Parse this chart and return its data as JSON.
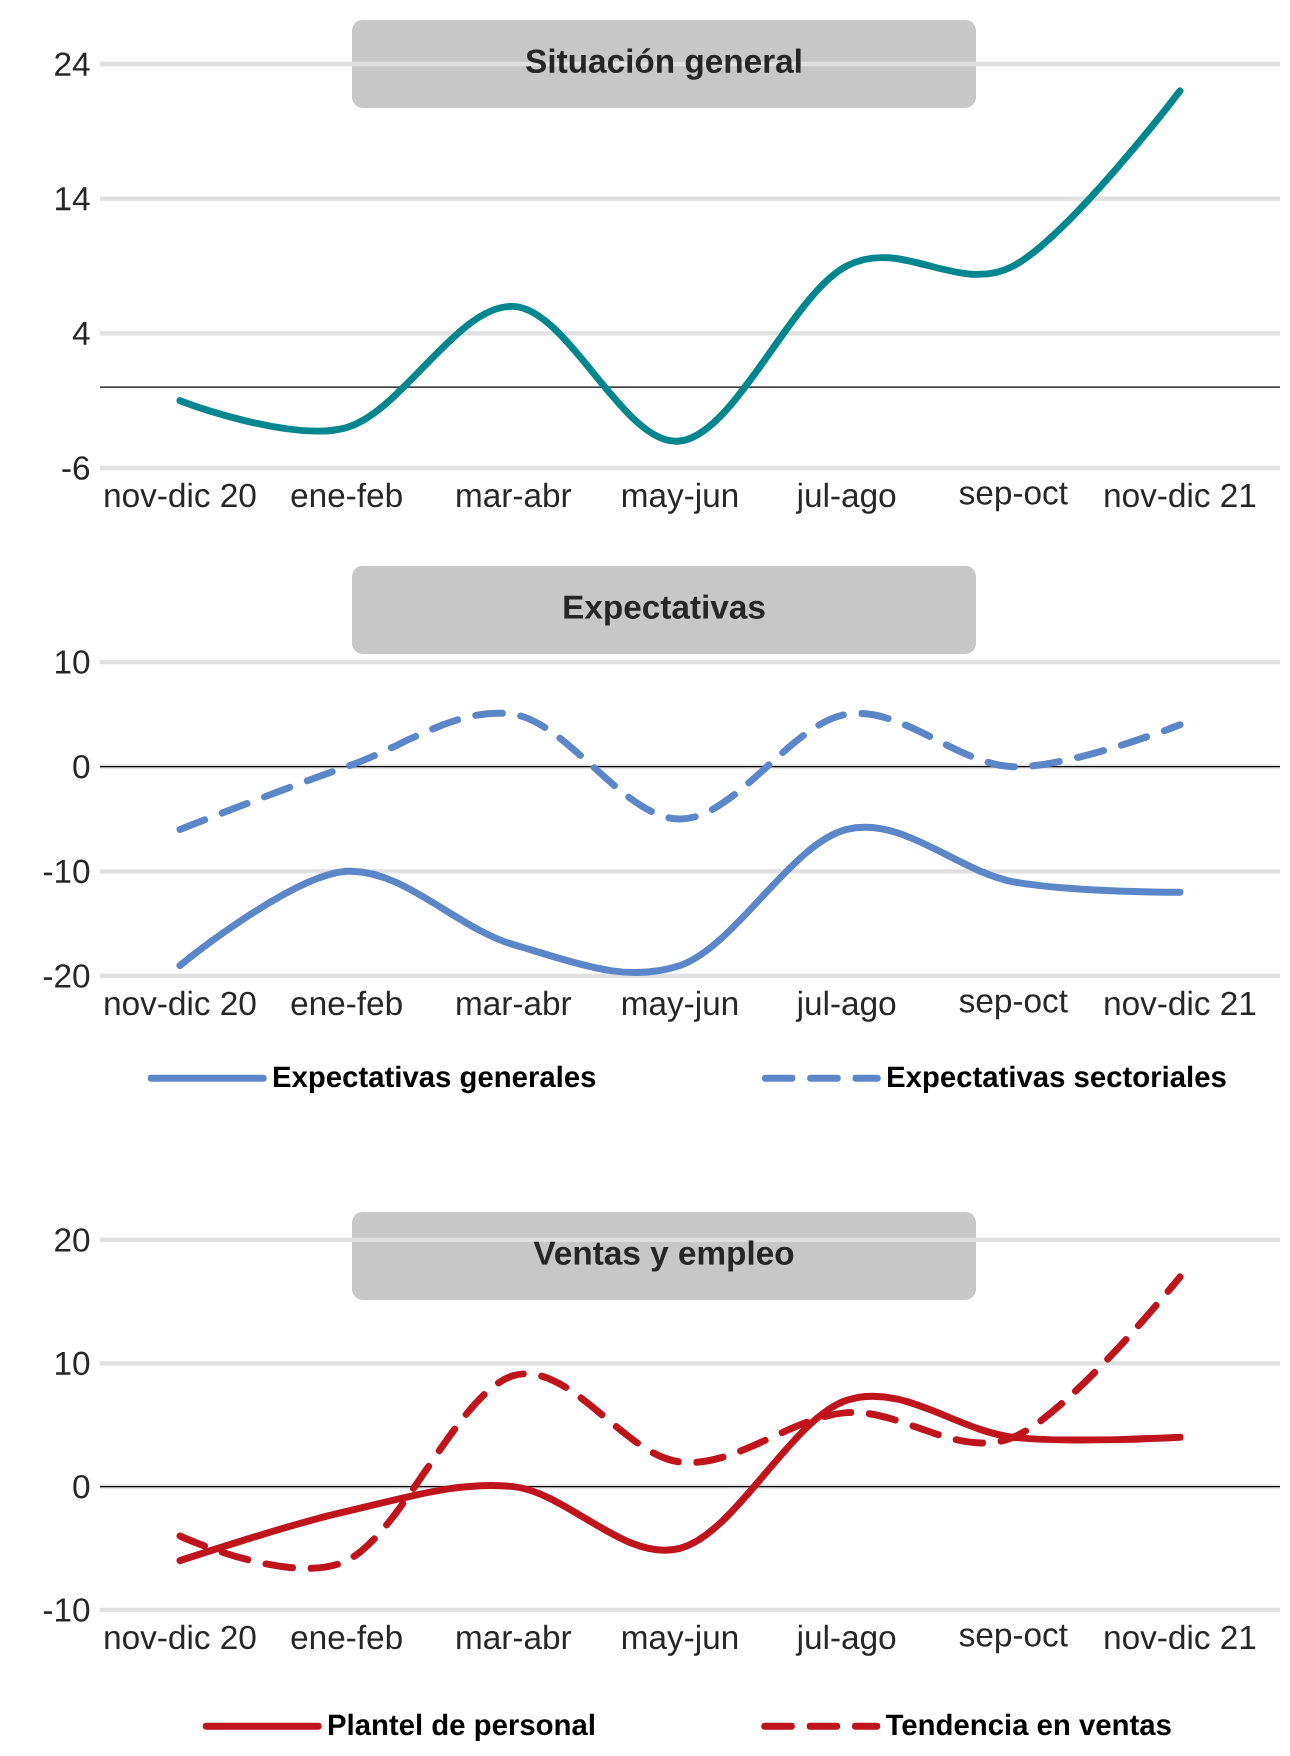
{
  "chart_data": [
    {
      "type": "line",
      "title": "Situación general",
      "categories": [
        "nov-dic 20",
        "ene-feb",
        "mar-abr",
        "may-jun",
        "jul-ago",
        "sep-oct",
        "nov-dic 21"
      ],
      "series": [
        {
          "color": "#00868f",
          "values": [
            -1,
            -3,
            6,
            -4,
            9,
            9,
            22
          ]
        }
      ],
      "ylim": [
        -6,
        24
      ],
      "yticks": [
        -6,
        4,
        14,
        24
      ],
      "grid": "y",
      "legend": false,
      "ref_lines": [
        {
          "axis": "y",
          "value": 0,
          "color": "#000000"
        }
      ]
    },
    {
      "type": "line",
      "title": "Expectativas",
      "categories": [
        "nov-dic 20",
        "ene-feb",
        "mar-abr",
        "may-jun",
        "jul-ago",
        "sep-oct",
        "nov-dic 21"
      ],
      "series": [
        {
          "name": "Expectativas generales",
          "color": "#5b87c8",
          "values": [
            -19,
            -10,
            -17,
            -19,
            -6,
            -11,
            -12
          ]
        },
        {
          "name": "Expectativas sectoriales",
          "color": "#5b87c8",
          "line_style": "dashed",
          "values": [
            -6,
            0,
            5,
            -5,
            5,
            0,
            4
          ]
        }
      ],
      "ylim": [
        -20,
        10
      ],
      "yticks": [
        -20,
        -10,
        0,
        10
      ],
      "grid": "y",
      "legend": "bottom",
      "ref_lines": [
        {
          "axis": "y",
          "value": 0,
          "color": "#000000"
        }
      ]
    },
    {
      "type": "line",
      "title": "Ventas y empleo",
      "categories": [
        "nov-dic 20",
        "ene-feb",
        "mar-abr",
        "may-jun",
        "jul-ago",
        "sep-oct",
        "nov-dic 21"
      ],
      "series": [
        {
          "name": "Plantel de personal",
          "color": "#c0141c",
          "values": [
            -6,
            -2,
            0,
            -5,
            7,
            4,
            4
          ]
        },
        {
          "name": "Tendencia en ventas",
          "color": "#c0141c",
          "line_style": "dashed",
          "values": [
            -4,
            -6,
            9,
            2,
            6,
            4,
            17
          ]
        }
      ],
      "ylim": [
        -10,
        20
      ],
      "yticks": [
        -10,
        0,
        10,
        20
      ],
      "grid": "y",
      "legend": "bottom",
      "ref_lines": [
        {
          "axis": "y",
          "value": 0,
          "color": "#000000"
        }
      ]
    }
  ]
}
